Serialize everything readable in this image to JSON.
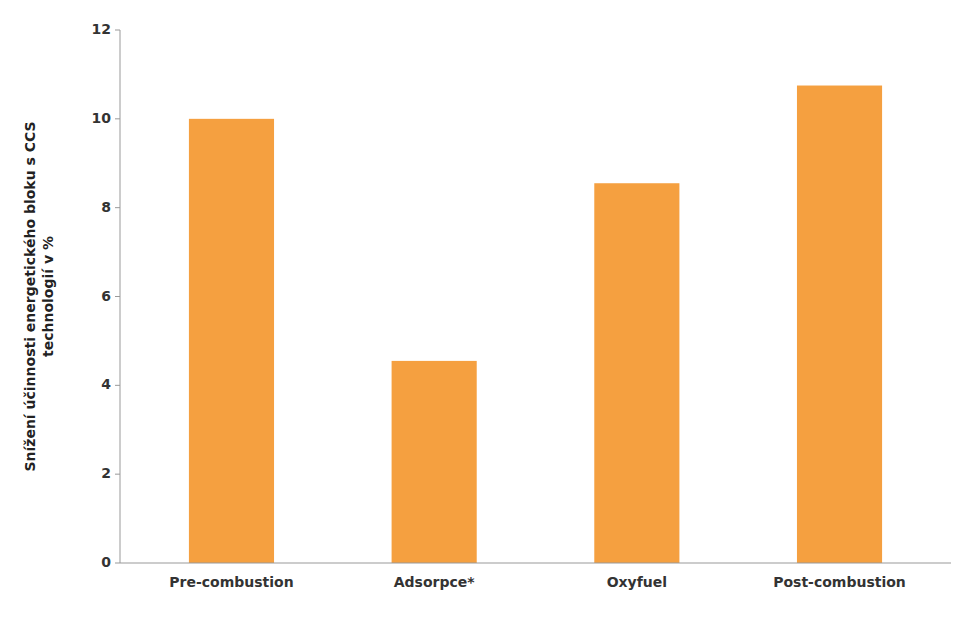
{
  "chart_data": {
    "type": "bar",
    "ylabel": "Snížení účinnosti energetického bloku s CCS\ntechnologií v %",
    "categories": [
      "Pre-combustion",
      "Adsorpce*",
      "Oxyfuel",
      "Post-combustion"
    ],
    "values": [
      10.0,
      4.55,
      8.55,
      10.75
    ],
    "color": "#F5A040",
    "ylim": [
      0,
      12
    ],
    "yticks": [
      0,
      2,
      4,
      6,
      8,
      10,
      12
    ],
    "grid": false
  }
}
